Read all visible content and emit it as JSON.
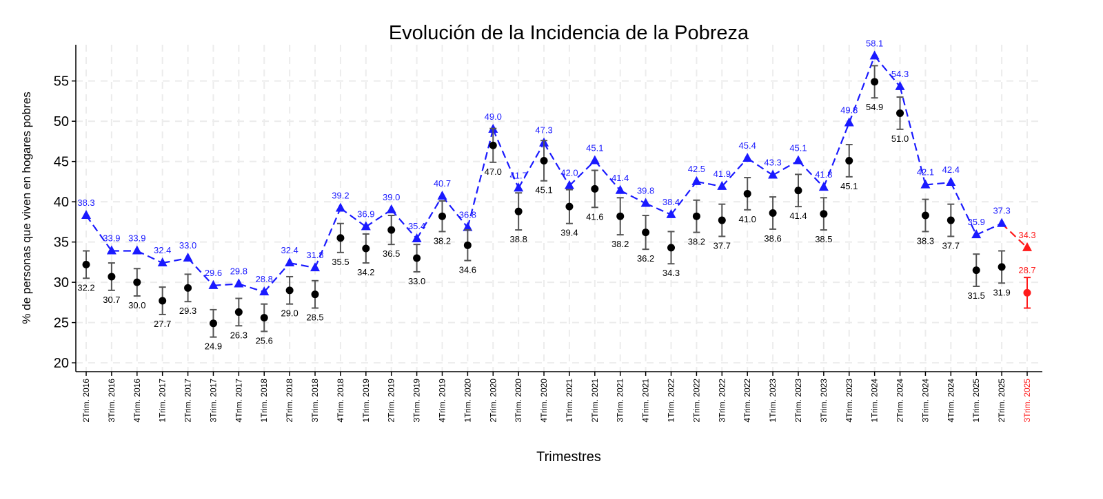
{
  "chart_data": {
    "type": "line",
    "title": "Evolución de la Incidencia de la Pobreza",
    "xlabel": "Trimestres",
    "ylabel": "% de personas que viven en hogares pobres",
    "ylim": [
      18.9,
      59.5
    ],
    "yticks": [
      20,
      25,
      30,
      35,
      40,
      45,
      50,
      55
    ],
    "grid": true,
    "categories": [
      "2Trim. 2016",
      "3Trim. 2016",
      "4Trim. 2016",
      "1Trim. 2017",
      "2Trim. 2017",
      "3Trim. 2017",
      "4Trim. 2017",
      "1Trim. 2018",
      "2Trim. 2018",
      "3Trim. 2018",
      "4Trim. 2018",
      "1Trim. 2019",
      "2Trim. 2019",
      "3Trim. 2019",
      "4Trim. 2019",
      "1Trim. 2020",
      "2Trim. 2020",
      "3Trim. 2020",
      "4Trim. 2020",
      "1Trim. 2021",
      "2Trim. 2021",
      "3Trim. 2021",
      "4Trim. 2021",
      "1Trim. 2022",
      "2Trim. 2022",
      "3Trim. 2022",
      "4Trim. 2022",
      "1Trim. 2023",
      "2Trim. 2023",
      "3Trim. 2023",
      "4Trim. 2023",
      "1Trim. 2024",
      "2Trim. 2024",
      "3Trim. 2024",
      "4Trim. 2024",
      "1Trim. 2025",
      "2Trim. 2025",
      "3Trim. 2025"
    ],
    "series": [
      {
        "style": "blue dashed line with triangles",
        "color": "#1a1aff",
        "values": [
          38.3,
          33.9,
          33.9,
          32.4,
          33.0,
          29.6,
          29.8,
          28.8,
          32.4,
          31.8,
          39.2,
          36.9,
          39.0,
          35.4,
          40.7,
          36.8,
          49.0,
          41.7,
          47.3,
          42.0,
          45.1,
          41.4,
          39.8,
          38.4,
          42.5,
          41.9,
          45.4,
          43.3,
          45.1,
          41.8,
          49.8,
          58.1,
          54.3,
          42.1,
          42.4,
          35.9,
          37.3,
          34.3
        ]
      },
      {
        "style": "black points with error bars",
        "color": "#000000",
        "values": [
          32.2,
          30.7,
          30.0,
          27.7,
          29.3,
          24.9,
          26.3,
          25.6,
          29.0,
          28.5,
          35.5,
          34.2,
          36.5,
          33.0,
          38.2,
          34.6,
          47.0,
          38.8,
          45.1,
          39.4,
          41.6,
          38.2,
          36.2,
          34.3,
          38.2,
          37.7,
          41.0,
          38.6,
          41.4,
          38.5,
          45.1,
          54.9,
          51.0,
          38.3,
          37.7,
          31.5,
          31.9,
          28.7
        ],
        "error": [
          1.7,
          1.7,
          1.7,
          1.7,
          1.7,
          1.7,
          1.7,
          1.7,
          1.7,
          1.7,
          1.8,
          1.8,
          1.8,
          1.7,
          1.9,
          1.9,
          2.1,
          2.3,
          2.5,
          2.1,
          2.3,
          2.3,
          2.1,
          2.0,
          2.0,
          2.0,
          2.0,
          2.0,
          2.0,
          2.0,
          2.0,
          2.0,
          2.0,
          2.0,
          2.0,
          2.0,
          2.0,
          1.9
        ]
      }
    ],
    "highlight_color": "#ff1a1a",
    "highlight_last": true
  }
}
